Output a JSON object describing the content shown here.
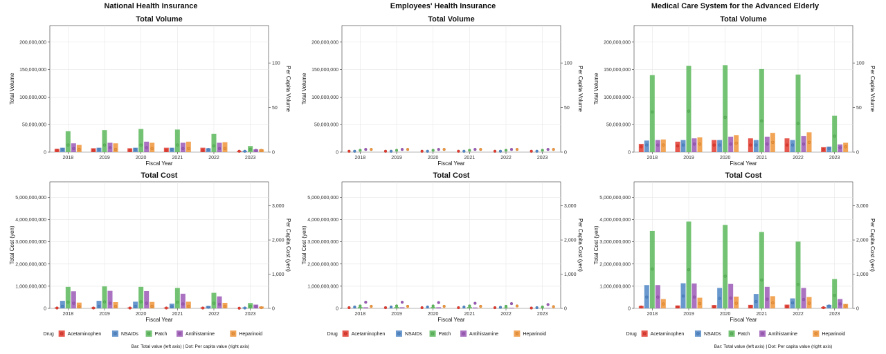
{
  "column_titles": [
    "National Health Insurance",
    "Employees' Health Insurance",
    "Medical Care System for the Advanced Elderly"
  ],
  "legend": {
    "title": "Drug",
    "items": [
      "Acetaminophen",
      "NSAIDs",
      "Patch",
      "Antihistamine",
      "Heparinoid"
    ],
    "colors": [
      "#e23a2e",
      "#4f86c6",
      "#5cb85c",
      "#9b59b6",
      "#f0953a"
    ]
  },
  "note": "Bar: Total value (left axis) | Dot: Per capita value (right axis)",
  "chart_data": [
    {
      "type": "bar",
      "group": "National Health Insurance",
      "title": "Total Volume",
      "xlabel": "Fiscal Year",
      "ylabel": "Total Volume",
      "y2label": "Per Capita Volume",
      "ylim": [
        0,
        230000000
      ],
      "y2lim": [
        0,
        142
      ],
      "yticks": [
        0,
        50000000,
        100000000,
        150000000,
        200000000
      ],
      "yticklabels": [
        "0",
        "50,000,000",
        "100,000,000",
        "150,000,000",
        "200,000,000"
      ],
      "y2ticks": [
        0,
        50,
        100
      ],
      "y2ticklabels": [
        "0",
        "50",
        "100"
      ],
      "categories": [
        "2018",
        "2019",
        "2020",
        "2021",
        "2022",
        "2023"
      ],
      "series": [
        {
          "name": "Acetaminophen",
          "values": [
            6000000,
            7000000,
            7000000,
            8000000,
            8000000,
            2000000
          ],
          "per_capita": [
            2,
            2,
            2,
            2,
            2,
            1
          ]
        },
        {
          "name": "NSAIDs",
          "values": [
            8000000,
            8000000,
            8000000,
            8000000,
            7000000,
            2000000
          ],
          "per_capita": [
            3,
            3,
            3,
            3,
            3,
            1
          ]
        },
        {
          "name": "Patch",
          "values": [
            38000000,
            40000000,
            42000000,
            41000000,
            33000000,
            11000000
          ],
          "per_capita": [
            8,
            8,
            8,
            8,
            7,
            3
          ]
        },
        {
          "name": "Antihistamine",
          "values": [
            16000000,
            17000000,
            19000000,
            17000000,
            17000000,
            5000000
          ],
          "per_capita": [
            4,
            5,
            5,
            4,
            4,
            2
          ]
        },
        {
          "name": "Heparinoid",
          "values": [
            13000000,
            16000000,
            17000000,
            19000000,
            18000000,
            5000000
          ],
          "per_capita": [
            3,
            3,
            4,
            4,
            4,
            2
          ]
        }
      ]
    },
    {
      "type": "bar",
      "group": "Employees' Health Insurance",
      "title": "Total Volume",
      "xlabel": "Fiscal Year",
      "ylabel": "Total Volume",
      "y2label": "Per Capita Volume",
      "ylim": [
        0,
        230000000
      ],
      "y2lim": [
        0,
        142
      ],
      "yticks": [
        0,
        50000000,
        100000000,
        150000000,
        200000000
      ],
      "yticklabels": [
        "0",
        "50,000,000",
        "100,000,000",
        "150,000,000",
        "200,000,000"
      ],
      "y2ticks": [
        0,
        50,
        100
      ],
      "y2ticklabels": [
        "0",
        "50",
        "100"
      ],
      "categories": [
        "2018",
        "2019",
        "2020",
        "2021",
        "2022",
        "2023"
      ],
      "series": [
        {
          "name": "Acetaminophen",
          "values": [
            0,
            0,
            0,
            0,
            0,
            0
          ],
          "per_capita": [
            1,
            1,
            1,
            1,
            1,
            1
          ]
        },
        {
          "name": "NSAIDs",
          "values": [
            0,
            0,
            0,
            0,
            0,
            0
          ],
          "per_capita": [
            1,
            1,
            1,
            1,
            1,
            1
          ]
        },
        {
          "name": "Patch",
          "values": [
            0,
            0,
            0,
            0,
            0,
            0
          ],
          "per_capita": [
            2,
            2,
            2,
            2,
            2,
            2
          ]
        },
        {
          "name": "Antihistamine",
          "values": [
            0,
            0,
            0,
            0,
            0,
            0
          ],
          "per_capita": [
            3,
            3,
            3,
            3,
            3,
            3
          ]
        },
        {
          "name": "Heparinoid",
          "values": [
            0,
            0,
            0,
            0,
            0,
            0
          ],
          "per_capita": [
            3,
            3,
            3,
            3,
            3,
            3
          ]
        }
      ]
    },
    {
      "type": "bar",
      "group": "Medical Care System for the Advanced Elderly",
      "title": "Total Volume",
      "xlabel": "Fiscal Year",
      "ylabel": "Total Volume",
      "y2label": "Per Capita Volume",
      "ylim": [
        0,
        230000000
      ],
      "y2lim": [
        0,
        142
      ],
      "yticks": [
        0,
        50000000,
        100000000,
        150000000,
        200000000
      ],
      "yticklabels": [
        "0",
        "50,000,000",
        "100,000,000",
        "150,000,000",
        "200,000,000"
      ],
      "y2ticks": [
        0,
        50,
        100
      ],
      "y2ticklabels": [
        "0",
        "50",
        "100"
      ],
      "categories": [
        "2018",
        "2019",
        "2020",
        "2021",
        "2022",
        "2023"
      ],
      "series": [
        {
          "name": "Acetaminophen",
          "values": [
            15000000,
            19000000,
            22000000,
            25000000,
            25000000,
            9000000
          ],
          "per_capita": [
            6,
            7,
            8,
            8,
            8,
            3
          ]
        },
        {
          "name": "NSAIDs",
          "values": [
            21000000,
            22000000,
            22000000,
            22000000,
            22000000,
            10000000
          ],
          "per_capita": [
            8,
            8,
            8,
            8,
            8,
            4
          ]
        },
        {
          "name": "Patch",
          "values": [
            140000000,
            157000000,
            158000000,
            151000000,
            141000000,
            66000000
          ],
          "per_capita": [
            45,
            46,
            39,
            35,
            32,
            18
          ]
        },
        {
          "name": "Antihistamine",
          "values": [
            22000000,
            25000000,
            28000000,
            28000000,
            29000000,
            14000000
          ],
          "per_capita": [
            8,
            9,
            9,
            9,
            9,
            5
          ]
        },
        {
          "name": "Heparinoid",
          "values": [
            23000000,
            27000000,
            31000000,
            35000000,
            36000000,
            17000000
          ],
          "per_capita": [
            8,
            9,
            10,
            11,
            11,
            6
          ]
        }
      ]
    },
    {
      "type": "bar",
      "group": "National Health Insurance",
      "title": "Total Cost",
      "xlabel": "Fiscal Year",
      "ylabel": "Total Cost (yen)",
      "y2label": "Per Capita Cost (yen)",
      "ylim": [
        0,
        5700000000
      ],
      "y2lim": [
        0,
        3700
      ],
      "yticks": [
        0,
        1000000000,
        2000000000,
        3000000000,
        4000000000,
        5000000000
      ],
      "yticklabels": [
        "0",
        "1,000,000,000",
        "2,000,000,000",
        "3,000,000,000",
        "4,000,000,000",
        "5,000,000,000"
      ],
      "y2ticks": [
        0,
        1000,
        2000,
        3000
      ],
      "y2ticklabels": [
        "0",
        "1,000",
        "2,000",
        "3,000"
      ],
      "categories": [
        "2018",
        "2019",
        "2020",
        "2021",
        "2022",
        "2023"
      ],
      "series": [
        {
          "name": "Acetaminophen",
          "values": [
            40000000,
            40000000,
            40000000,
            40000000,
            40000000,
            10000000
          ],
          "per_capita": [
            10,
            10,
            10,
            10,
            10,
            5
          ]
        },
        {
          "name": "NSAIDs",
          "values": [
            340000000,
            340000000,
            300000000,
            210000000,
            110000000,
            40000000
          ],
          "per_capita": [
            60,
            60,
            60,
            50,
            30,
            10
          ]
        },
        {
          "name": "Patch",
          "values": [
            970000000,
            990000000,
            970000000,
            920000000,
            700000000,
            240000000
          ],
          "per_capita": [
            180,
            190,
            190,
            180,
            150,
            60
          ]
        },
        {
          "name": "Antihistamine",
          "values": [
            770000000,
            790000000,
            780000000,
            660000000,
            540000000,
            170000000
          ],
          "per_capita": [
            150,
            150,
            150,
            130,
            120,
            50
          ]
        },
        {
          "name": "Heparinoid",
          "values": [
            260000000,
            280000000,
            290000000,
            300000000,
            250000000,
            80000000
          ],
          "per_capita": [
            50,
            60,
            60,
            60,
            60,
            20
          ]
        }
      ]
    },
    {
      "type": "bar",
      "group": "Employees' Health Insurance",
      "title": "Total Cost",
      "xlabel": "Fiscal Year",
      "ylabel": "Total Cost (yen)",
      "y2label": "Per Capita Cost (yen)",
      "ylim": [
        0,
        5700000000
      ],
      "y2lim": [
        0,
        3700
      ],
      "yticks": [
        0,
        1000000000,
        2000000000,
        3000000000,
        4000000000,
        5000000000
      ],
      "yticklabels": [
        "0",
        "1,000,000,000",
        "2,000,000,000",
        "3,000,000,000",
        "4,000,000,000",
        "5,000,000,000"
      ],
      "y2ticks": [
        0,
        1000,
        2000,
        3000
      ],
      "y2ticklabels": [
        "0",
        "1,000",
        "2,000",
        "3,000"
      ],
      "categories": [
        "2018",
        "2019",
        "2020",
        "2021",
        "2022",
        "2023"
      ],
      "series": [
        {
          "name": "Acetaminophen",
          "values": [
            5000000,
            5000000,
            5000000,
            5000000,
            5000000,
            2000000
          ],
          "per_capita": [
            20,
            20,
            20,
            20,
            20,
            10
          ]
        },
        {
          "name": "NSAIDs",
          "values": [
            20000000,
            20000000,
            20000000,
            20000000,
            15000000,
            8000000
          ],
          "per_capita": [
            40,
            40,
            40,
            40,
            30,
            20
          ]
        },
        {
          "name": "Patch",
          "values": [
            60000000,
            60000000,
            60000000,
            60000000,
            40000000,
            20000000
          ],
          "per_capita": [
            70,
            70,
            70,
            70,
            60,
            40
          ]
        },
        {
          "name": "Antihistamine",
          "values": [
            50000000,
            50000000,
            50000000,
            40000000,
            30000000,
            20000000
          ],
          "per_capita": [
            180,
            180,
            170,
            150,
            140,
            110
          ]
        },
        {
          "name": "Heparinoid",
          "values": [
            15000000,
            15000000,
            15000000,
            15000000,
            15000000,
            8000000
          ],
          "per_capita": [
            60,
            60,
            60,
            60,
            70,
            50
          ]
        }
      ]
    },
    {
      "type": "bar",
      "group": "Medical Care System for the Advanced Elderly",
      "title": "Total Cost",
      "xlabel": "Fiscal Year",
      "ylabel": "Total Cost (yen)",
      "y2label": "Per Capita Cost (yen)",
      "ylim": [
        0,
        5700000000
      ],
      "y2lim": [
        0,
        3700
      ],
      "yticks": [
        0,
        1000000000,
        2000000000,
        3000000000,
        4000000000,
        5000000000
      ],
      "yticklabels": [
        "0",
        "1,000,000,000",
        "2,000,000,000",
        "3,000,000,000",
        "4,000,000,000",
        "5,000,000,000"
      ],
      "y2ticks": [
        0,
        1000,
        2000,
        3000
      ],
      "y2ticklabels": [
        "0",
        "1,000",
        "2,000",
        "3,000"
      ],
      "categories": [
        "2018",
        "2019",
        "2020",
        "2021",
        "2022",
        "2023"
      ],
      "series": [
        {
          "name": "Acetaminophen",
          "values": [
            110000000,
            130000000,
            150000000,
            160000000,
            170000000,
            60000000
          ],
          "per_capita": [
            40,
            40,
            50,
            50,
            50,
            20
          ]
        },
        {
          "name": "NSAIDs",
          "values": [
            1050000000,
            1130000000,
            920000000,
            650000000,
            450000000,
            160000000
          ],
          "per_capita": [
            330,
            360,
            290,
            200,
            160,
            70
          ]
        },
        {
          "name": "Patch",
          "values": [
            3490000000,
            3910000000,
            3760000000,
            3440000000,
            3010000000,
            1320000000
          ],
          "per_capita": [
            1150,
            1130,
            940,
            830,
            700,
            380
          ]
        },
        {
          "name": "Antihistamine",
          "values": [
            1050000000,
            1120000000,
            1100000000,
            970000000,
            920000000,
            420000000
          ],
          "per_capita": [
            330,
            330,
            300,
            270,
            260,
            130
          ]
        },
        {
          "name": "Heparinoid",
          "values": [
            420000000,
            480000000,
            530000000,
            550000000,
            510000000,
            200000000
          ],
          "per_capita": [
            130,
            140,
            150,
            160,
            150,
            70
          ]
        }
      ]
    }
  ]
}
